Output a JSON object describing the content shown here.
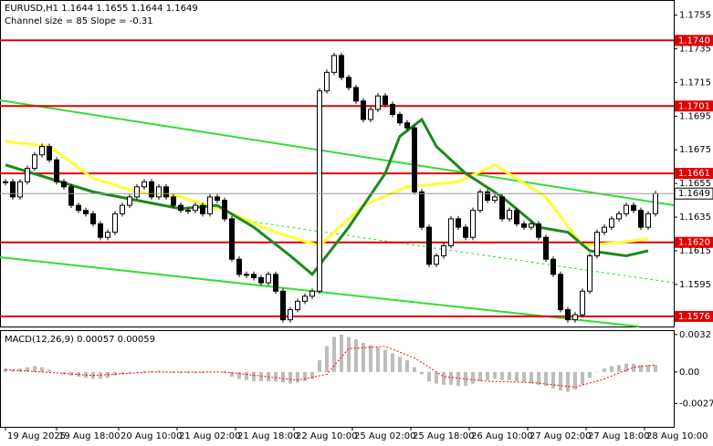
{
  "chart_data": {
    "type": "candlestick",
    "title": "EURUSD,H1  1.1644 1.1655 1.1644 1.1649",
    "subtitle": "Channel size = 85 Slope = -0.31",
    "close": [
      1.1656,
      1.1647,
      1.1656,
      1.1664,
      1.1672,
      1.1677,
      1.1669,
      1.1656,
      1.1653,
      1.1642,
      1.1639,
      1.1637,
      1.1631,
      1.1623,
      1.1626,
      1.1637,
      1.1642,
      1.1647,
      1.1653,
      1.1656,
      1.1647,
      1.1653,
      1.1647,
      1.1642,
      1.1639,
      1.1639,
      1.1642,
      1.1637,
      1.1647,
      1.1645,
      1.1634,
      1.161,
      1.1601,
      1.1601,
      1.1599,
      1.1596,
      1.1601,
      1.1591,
      1.1574,
      1.158,
      1.1585,
      1.1588,
      1.1591,
      1.171,
      1.1721,
      1.1731,
      1.1718,
      1.1712,
      1.1704,
      1.1693,
      1.1699,
      1.1707,
      1.1702,
      1.1696,
      1.1691,
      1.1688,
      1.165,
      1.1629,
      1.1607,
      1.1612,
      1.1618,
      1.1634,
      1.1629,
      1.1623,
      1.1639,
      1.165,
      1.1645,
      1.1647,
      1.1634,
      1.1639,
      1.1631,
      1.1629,
      1.1631,
      1.1623,
      1.161,
      1.1601,
      1.158,
      1.1574,
      1.1577,
      1.1591,
      1.1612,
      1.1626,
      1.1629,
      1.1634,
      1.1637,
      1.1642,
      1.1639,
      1.1629,
      1.1637,
      1.1649
    ],
    "color_up": "#ffffff",
    "color_down": "#000000",
    "xlim": [
      -0.75,
      91.5
    ],
    "ylim": [
      1.157,
      1.1764
    ],
    "yticks": [
      1.1755,
      1.1735,
      1.1715,
      1.1695,
      1.1675,
      1.1655,
      1.1635,
      1.1615,
      1.1595
    ],
    "xticks": [
      {
        "value": 0,
        "label": "19 Aug 2025"
      },
      {
        "value": 7,
        "label": "19 Aug 18:00"
      },
      {
        "value": 15.5,
        "label": "20 Aug 10:00"
      },
      {
        "value": 23.5,
        "label": "21 Aug 02:00"
      },
      {
        "value": 31.5,
        "label": "21 Aug 18:00"
      },
      {
        "value": 39.5,
        "label": "22 Aug 10:00"
      },
      {
        "value": 47.5,
        "label": "25 Aug 02:00"
      },
      {
        "value": 55.5,
        "label": "25 Aug 18:00"
      },
      {
        "value": 63.5,
        "label": "26 Aug 10:00"
      },
      {
        "value": 71.5,
        "label": "27 Aug 02:00"
      },
      {
        "value": 79.5,
        "label": "27 Aug 18:00"
      },
      {
        "value": 87.5,
        "label": "28 Aug 10:00"
      }
    ],
    "levels": [
      {
        "value": 1.174,
        "label": "1.1740"
      },
      1.1701,
      1.1661,
      {
        "value": 1.162,
        "label": "1.1620"
      },
      1.1576
    ],
    "level_color": "#e00000",
    "last_price": 1.1649,
    "series": [
      {
        "color": "#ffff33",
        "x": [
          0,
          6,
          12,
          18,
          24,
          30,
          37,
          43,
          49,
          55,
          62,
          67,
          74,
          79,
          84,
          88
        ],
        "values": [
          1.168,
          1.1677,
          1.1658,
          1.165,
          1.1647,
          1.1639,
          1.1626,
          1.1618,
          1.1642,
          1.1653,
          1.1656,
          1.1666,
          1.1647,
          1.1618,
          1.162,
          1.1622
        ]
      },
      {
        "color": "#1a8a1a",
        "x": [
          0,
          6,
          12,
          18,
          24,
          29,
          34,
          39,
          42,
          47,
          52,
          54,
          57,
          59,
          63,
          68,
          73,
          77,
          80,
          85,
          88
        ],
        "values": [
          1.1666,
          1.1658,
          1.165,
          1.1645,
          1.164,
          1.1642,
          1.1629,
          1.1612,
          1.1601,
          1.1629,
          1.1661,
          1.1683,
          1.1693,
          1.1677,
          1.1661,
          1.1647,
          1.1629,
          1.1626,
          1.1615,
          1.1612,
          1.1615
        ]
      }
    ],
    "macd": {
      "label": "MACD(12,26,9) 0.00057 0.00059",
      "histogram": [
        0.0003,
        0.0002,
        0.0003,
        0.0004,
        0.0005,
        0.0004,
        0.0002,
        0,
        -0.0002,
        -0.0003,
        -0.0004,
        -0.0005,
        -0.0006,
        -0.0006,
        -0.0005,
        -0.0003,
        -0.0002,
        -0.0001,
        0,
        0.0001,
        0.0001,
        0.0001,
        0,
        -0.0001,
        -0.0001,
        -0.0001,
        -0.0001,
        -0.0001,
        0,
        0,
        -0.0001,
        -0.0004,
        -0.0006,
        -0.0007,
        -0.0008,
        -0.0008,
        -0.0008,
        -0.0008,
        -0.0009,
        -0.001,
        -0.0009,
        -0.0008,
        -0.0006,
        0.001,
        0.0022,
        0.003,
        0.0032,
        0.003,
        0.0028,
        0.0025,
        0.0023,
        0.0021,
        0.0019,
        0.0016,
        0.0013,
        0.001,
        0.0004,
        -0.0002,
        -0.0008,
        -0.001,
        -0.0011,
        -0.0011,
        -0.0012,
        -0.0012,
        -0.001,
        -0.0008,
        -0.0007,
        -0.0006,
        -0.0007,
        -0.0007,
        -0.0008,
        -0.0009,
        -0.001,
        -0.0011,
        -0.0012,
        -0.0014,
        -0.0016,
        -0.0017,
        -0.0015,
        -0.0011,
        -0.0005,
        0,
        0.0003,
        0.0005,
        0.0006,
        0.0007,
        0.0007,
        0.0006,
        0.0006,
        0.0006
      ],
      "hist_color": "#bdbdbd",
      "signal_x": [
        0,
        12,
        20,
        30,
        40,
        44,
        47,
        52,
        56,
        60,
        66,
        72,
        78,
        82,
        86,
        89
      ],
      "signal": [
        0.0002,
        -0.0003,
        0,
        0,
        -0.0007,
        -0.0002,
        0.002,
        0.0022,
        0.0012,
        -0.0004,
        -0.0008,
        -0.0009,
        -0.0013,
        -0.0006,
        0.0004,
        0.0006
      ],
      "signal_color": "#ff0000",
      "ylim": [
        -0.0047,
        0.0035
      ],
      "yticks": [
        0.0032,
        {
          "value": 0,
          "label": "0.00"
        },
        -0.0027
      ]
    }
  }
}
